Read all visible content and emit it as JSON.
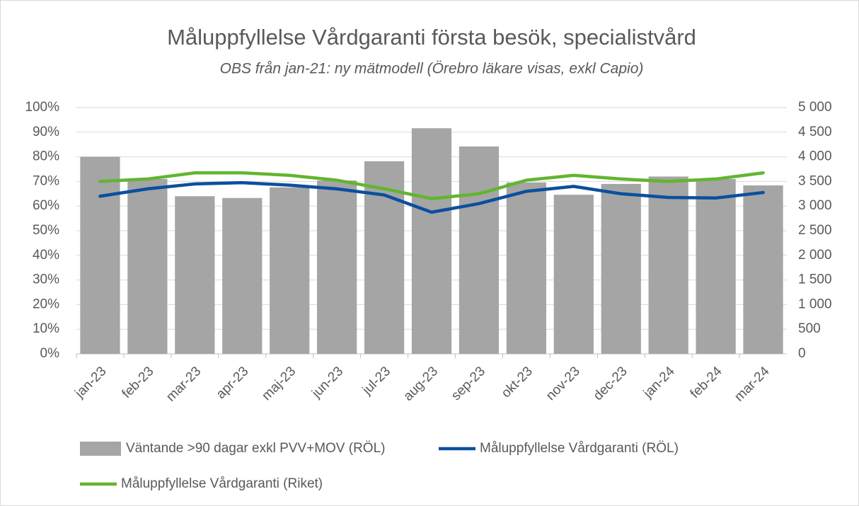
{
  "chart_data": {
    "type": "bar_line",
    "title": "Måluppfyllelse Vårdgaranti första besök, specialistvård",
    "subtitle": "OBS från jan-21: ny mätmodell (Örebro läkare visas, exkl Capio)",
    "categories": [
      "jan-23",
      "feb-23",
      "mar-23",
      "apr-23",
      "maj-23",
      "jun-23",
      "jul-23",
      "aug-23",
      "sep-23",
      "okt-23",
      "nov-23",
      "dec-23",
      "jan-24",
      "feb-24",
      "mar-24"
    ],
    "series": [
      {
        "name": "Väntande >90 dagar exkl PVV+MOV (RÖL)",
        "type": "bar",
        "axis": "y2",
        "color": "#a5a5a5",
        "values": [
          4000,
          3550,
          3200,
          3165,
          3380,
          3520,
          3910,
          4580,
          4210,
          3480,
          3230,
          3450,
          3600,
          3550,
          3420
        ]
      },
      {
        "name": "Måluppfyllelse Vårdgaranti (RÖL)",
        "type": "line",
        "color": "#0b4f9e",
        "values": [
          64,
          67,
          69,
          69.5,
          68.5,
          67,
          64.5,
          57.5,
          61,
          66,
          68,
          65,
          63.5,
          63.3,
          65.5
        ]
      },
      {
        "name": "Måluppfyllelse Vårdgaranti (Riket)",
        "type": "line",
        "color": "#62b530",
        "values": [
          70,
          71,
          73.5,
          73.5,
          72.5,
          70.5,
          67,
          63,
          65,
          70.5,
          72.5,
          71,
          70,
          71,
          73.5
        ]
      }
    ],
    "ylim": [
      0,
      100
    ],
    "yticks": [
      {
        "value": 0,
        "label": "0%"
      },
      {
        "value": 10,
        "label": "10%"
      },
      {
        "value": 20,
        "label": "20%"
      },
      {
        "value": 30,
        "label": "30%"
      },
      {
        "value": 40,
        "label": "40%"
      },
      {
        "value": 50,
        "label": "50%"
      },
      {
        "value": 60,
        "label": "60%"
      },
      {
        "value": 70,
        "label": "70%"
      },
      {
        "value": 80,
        "label": "80%"
      },
      {
        "value": 90,
        "label": "90%"
      },
      {
        "value": 100,
        "label": "100%"
      }
    ],
    "y2lim": [
      0,
      5000
    ],
    "y2ticks": [
      0,
      500,
      {
        "value": 1000,
        "label": "1 000"
      },
      {
        "value": 1500,
        "label": "1 500"
      },
      {
        "value": 2000,
        "label": "2 000"
      },
      {
        "value": 2500,
        "label": "2 500"
      },
      {
        "value": 3000,
        "label": "3 000"
      },
      {
        "value": 3500,
        "label": "3 500"
      },
      {
        "value": 4000,
        "label": "4 000"
      },
      {
        "value": 4500,
        "label": "4 500"
      },
      {
        "value": 5000,
        "label": "5 000"
      }
    ],
    "grid": true,
    "legend": "bottom"
  }
}
